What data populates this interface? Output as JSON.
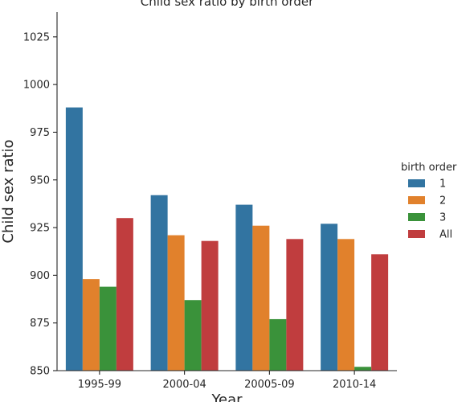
{
  "chart_data": {
    "type": "bar",
    "title": "Child sex ratio by birth order",
    "xlabel": "Year",
    "ylabel": "Child sex ratio",
    "categories": [
      "1995-99",
      "2000-04",
      "20005-09",
      "2010-14"
    ],
    "ylim": [
      850,
      1038
    ],
    "yticks": [
      850,
      875,
      900,
      925,
      950,
      975,
      1000,
      1025
    ],
    "grid": false,
    "legend": {
      "title": "birth order",
      "placement": "right"
    },
    "series": [
      {
        "name": "1",
        "color": "#3274a1",
        "values": [
          988,
          942,
          937,
          927
        ]
      },
      {
        "name": "2",
        "color": "#e1812c",
        "values": [
          898,
          921,
          926,
          919
        ]
      },
      {
        "name": "3",
        "color": "#3a923a",
        "values": [
          894,
          887,
          877,
          852
        ]
      },
      {
        "name": "All",
        "color": "#c03d3e",
        "values": [
          930,
          918,
          919,
          911
        ]
      }
    ]
  }
}
